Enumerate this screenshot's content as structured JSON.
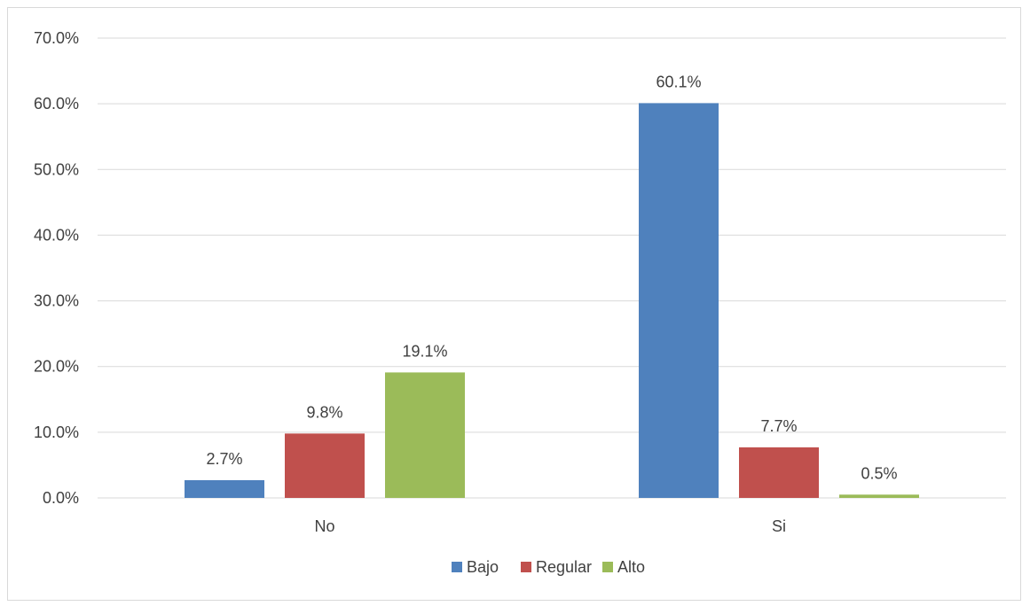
{
  "chart_data": {
    "type": "bar",
    "categories": [
      "No",
      "Si"
    ],
    "series": [
      {
        "name": "Bajo",
        "values": [
          2.7,
          60.1
        ],
        "labels": [
          "2.7%",
          "60.1%"
        ],
        "color": "#4f81bd"
      },
      {
        "name": "Regular",
        "values": [
          9.8,
          7.7
        ],
        "labels": [
          "9.8%",
          "7.7%"
        ],
        "color": "#c0504d"
      },
      {
        "name": "Alto",
        "values": [
          19.1,
          0.5
        ],
        "labels": [
          "19.1%",
          "0.5%"
        ],
        "color": "#9bbb59"
      }
    ],
    "ylim": [
      0,
      70
    ],
    "yticks": [
      0,
      10,
      20,
      30,
      40,
      50,
      60,
      70
    ],
    "ytick_labels": [
      "0.0%",
      "10.0%",
      "20.0%",
      "30.0%",
      "40.0%",
      "50.0%",
      "60.0%",
      "70.0%"
    ],
    "grid": true,
    "legend_position": "bottom",
    "title": "",
    "xlabel": "",
    "ylabel": ""
  }
}
